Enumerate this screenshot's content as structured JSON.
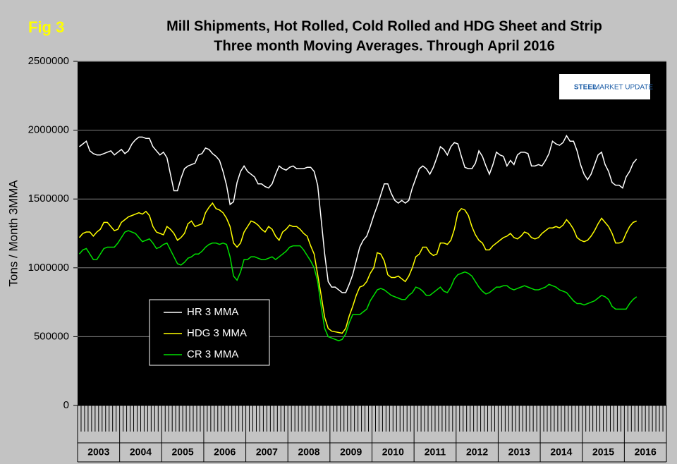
{
  "chart_data": {
    "type": "line",
    "fig_label": "Fig 3",
    "title": "Mill Shipments, Hot Rolled, Cold Rolled and HDG Sheet and Strip",
    "subtitle": "Three month Moving Averages. Through April 2016",
    "y_label": "Tons / Month 3MMA",
    "logo_text": [
      "STEEL",
      "MARKET UPDATE"
    ],
    "year_labels": [
      "2003",
      "2004",
      "2005",
      "2006",
      "2007",
      "2008",
      "2009",
      "2010",
      "2011",
      "2012",
      "2013",
      "2014",
      "2015",
      "2016"
    ],
    "ylim": [
      0,
      2500000
    ],
    "yticks": [
      0,
      500000,
      1000000,
      1500000,
      2000000,
      2500000
    ],
    "grid": true,
    "series": [
      {
        "name": "HR 3 MMA",
        "color": "#ffffff",
        "values": [
          1880000,
          1900000,
          1920000,
          1850000,
          1830000,
          1820000,
          1820000,
          1830000,
          1840000,
          1850000,
          1820000,
          1840000,
          1860000,
          1830000,
          1850000,
          1900000,
          1930000,
          1950000,
          1950000,
          1940000,
          1940000,
          1880000,
          1850000,
          1820000,
          1840000,
          1800000,
          1680000,
          1560000,
          1560000,
          1650000,
          1720000,
          1740000,
          1750000,
          1760000,
          1820000,
          1830000,
          1870000,
          1860000,
          1830000,
          1810000,
          1780000,
          1700000,
          1600000,
          1460000,
          1480000,
          1620000,
          1700000,
          1740000,
          1700000,
          1680000,
          1660000,
          1610000,
          1610000,
          1590000,
          1580000,
          1610000,
          1680000,
          1740000,
          1720000,
          1710000,
          1730000,
          1740000,
          1720000,
          1720000,
          1720000,
          1730000,
          1730000,
          1700000,
          1600000,
          1350000,
          1100000,
          900000,
          860000,
          860000,
          840000,
          820000,
          820000,
          880000,
          950000,
          1050000,
          1150000,
          1200000,
          1230000,
          1300000,
          1380000,
          1450000,
          1530000,
          1610000,
          1610000,
          1540000,
          1490000,
          1470000,
          1490000,
          1470000,
          1490000,
          1580000,
          1650000,
          1720000,
          1740000,
          1720000,
          1680000,
          1730000,
          1800000,
          1880000,
          1860000,
          1820000,
          1880000,
          1910000,
          1900000,
          1810000,
          1730000,
          1720000,
          1720000,
          1760000,
          1850000,
          1810000,
          1740000,
          1680000,
          1750000,
          1840000,
          1820000,
          1810000,
          1740000,
          1780000,
          1750000,
          1820000,
          1840000,
          1840000,
          1830000,
          1740000,
          1740000,
          1750000,
          1740000,
          1780000,
          1830000,
          1920000,
          1900000,
          1890000,
          1910000,
          1960000,
          1920000,
          1920000,
          1850000,
          1750000,
          1680000,
          1640000,
          1680000,
          1750000,
          1820000,
          1840000,
          1750000,
          1700000,
          1620000,
          1600000,
          1600000,
          1580000,
          1660000,
          1700000,
          1760000,
          1790000
        ]
      },
      {
        "name": "HDG 3 MMA",
        "color": "#ffff00",
        "values": [
          1220000,
          1250000,
          1260000,
          1260000,
          1230000,
          1260000,
          1280000,
          1330000,
          1330000,
          1300000,
          1270000,
          1280000,
          1330000,
          1350000,
          1370000,
          1380000,
          1390000,
          1400000,
          1390000,
          1410000,
          1380000,
          1300000,
          1260000,
          1250000,
          1240000,
          1300000,
          1280000,
          1250000,
          1200000,
          1220000,
          1250000,
          1320000,
          1340000,
          1300000,
          1310000,
          1320000,
          1400000,
          1440000,
          1470000,
          1430000,
          1420000,
          1400000,
          1360000,
          1300000,
          1180000,
          1150000,
          1180000,
          1260000,
          1300000,
          1340000,
          1330000,
          1310000,
          1280000,
          1260000,
          1300000,
          1280000,
          1230000,
          1200000,
          1260000,
          1280000,
          1310000,
          1300000,
          1300000,
          1280000,
          1250000,
          1230000,
          1160000,
          1100000,
          950000,
          800000,
          640000,
          560000,
          540000,
          535000,
          530000,
          525000,
          560000,
          650000,
          720000,
          800000,
          860000,
          870000,
          900000,
          960000,
          1000000,
          1110000,
          1100000,
          1050000,
          950000,
          930000,
          930000,
          940000,
          920000,
          900000,
          940000,
          1000000,
          1080000,
          1100000,
          1150000,
          1150000,
          1110000,
          1090000,
          1100000,
          1180000,
          1180000,
          1170000,
          1200000,
          1280000,
          1400000,
          1430000,
          1420000,
          1380000,
          1300000,
          1240000,
          1200000,
          1180000,
          1130000,
          1130000,
          1160000,
          1180000,
          1200000,
          1220000,
          1230000,
          1250000,
          1220000,
          1210000,
          1230000,
          1260000,
          1250000,
          1220000,
          1210000,
          1220000,
          1250000,
          1270000,
          1290000,
          1290000,
          1300000,
          1290000,
          1310000,
          1350000,
          1320000,
          1280000,
          1220000,
          1200000,
          1190000,
          1200000,
          1230000,
          1270000,
          1320000,
          1360000,
          1330000,
          1300000,
          1250000,
          1180000,
          1180000,
          1190000,
          1250000,
          1300000,
          1330000,
          1340000
        ]
      },
      {
        "name": "CR 3 MMA",
        "color": "#00e000",
        "values": [
          1100000,
          1130000,
          1140000,
          1100000,
          1060000,
          1060000,
          1100000,
          1140000,
          1150000,
          1150000,
          1150000,
          1180000,
          1220000,
          1260000,
          1270000,
          1260000,
          1250000,
          1220000,
          1190000,
          1200000,
          1210000,
          1180000,
          1140000,
          1150000,
          1170000,
          1180000,
          1130000,
          1080000,
          1030000,
          1020000,
          1040000,
          1070000,
          1080000,
          1100000,
          1100000,
          1120000,
          1150000,
          1170000,
          1180000,
          1180000,
          1170000,
          1180000,
          1170000,
          1080000,
          940000,
          910000,
          970000,
          1060000,
          1060000,
          1080000,
          1080000,
          1070000,
          1060000,
          1060000,
          1070000,
          1080000,
          1060000,
          1080000,
          1100000,
          1120000,
          1150000,
          1160000,
          1160000,
          1160000,
          1130000,
          1090000,
          1050000,
          1000000,
          900000,
          720000,
          560000,
          500000,
          490000,
          480000,
          470000,
          480000,
          520000,
          600000,
          660000,
          660000,
          660000,
          680000,
          700000,
          760000,
          800000,
          840000,
          850000,
          840000,
          820000,
          800000,
          790000,
          780000,
          770000,
          770000,
          800000,
          820000,
          860000,
          850000,
          830000,
          800000,
          800000,
          820000,
          840000,
          860000,
          830000,
          820000,
          860000,
          920000,
          950000,
          960000,
          970000,
          960000,
          940000,
          900000,
          860000,
          830000,
          810000,
          820000,
          840000,
          860000,
          860000,
          870000,
          870000,
          850000,
          840000,
          850000,
          860000,
          870000,
          860000,
          850000,
          840000,
          840000,
          850000,
          860000,
          880000,
          870000,
          860000,
          840000,
          830000,
          820000,
          790000,
          760000,
          740000,
          740000,
          730000,
          740000,
          750000,
          760000,
          780000,
          800000,
          790000,
          770000,
          720000,
          700000,
          700000,
          700000,
          700000,
          740000,
          770000,
          790000
        ]
      }
    ]
  }
}
